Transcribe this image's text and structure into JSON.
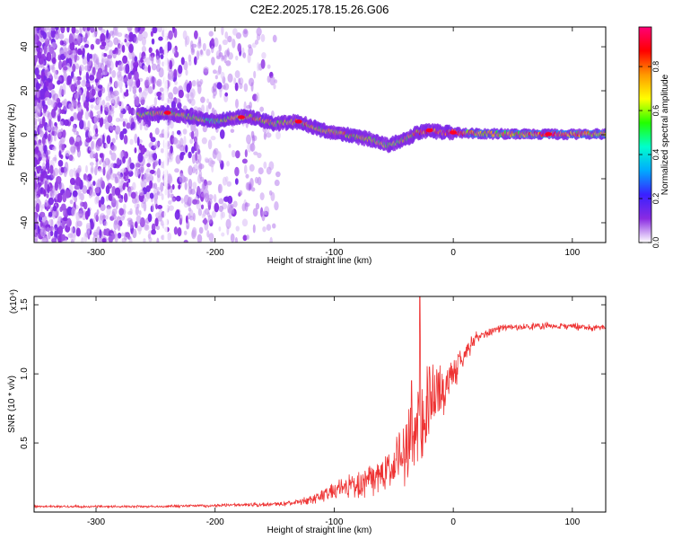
{
  "title": "C2E2.2025.178.15.26.G06",
  "chart_data": [
    {
      "type": "heatmap",
      "xlabel": "Height of straight line (km)",
      "ylabel": "Frequency (Hz)",
      "xlim": [
        -352,
        128
      ],
      "ylim": [
        -49,
        49
      ],
      "xticks": [
        -300,
        -200,
        -100,
        0,
        100
      ],
      "yticks": [
        -40,
        -20,
        0,
        20,
        40
      ],
      "xtick_labels": [
        "-300",
        "-200",
        "-100",
        "0",
        "100"
      ],
      "ytick_labels": [
        "-40",
        "-20",
        "0",
        "20",
        "40"
      ],
      "colorbar": {
        "label": "Normalized spectral amplitude",
        "range": [
          0,
          0.98
        ],
        "ticks": [
          0,
          0.2,
          0.4,
          0.6,
          0.8
        ],
        "tick_labels": [
          "0.0",
          "0.2",
          "0.4",
          "0.6",
          "0.8"
        ],
        "colormap": [
          "#ffffff",
          "#8a2be2",
          "#3a20ff",
          "#00aaff",
          "#00ffcc",
          "#22ff00",
          "#ffff00",
          "#ff9900",
          "#ff0000",
          "#ff0077"
        ]
      },
      "ridge": [
        {
          "x": -265,
          "y": 9,
          "w": 0.45
        },
        {
          "x": -240,
          "y": 10,
          "w": 0.55
        },
        {
          "x": -200,
          "y": 6,
          "w": 0.35
        },
        {
          "x": -180,
          "y": 8,
          "w": 0.5
        },
        {
          "x": -170,
          "y": 8,
          "w": 0.6
        },
        {
          "x": -150,
          "y": 5,
          "w": 0.5
        },
        {
          "x": -130,
          "y": 6,
          "w": 0.6
        },
        {
          "x": -110,
          "y": 2,
          "w": 0.5
        },
        {
          "x": -90,
          "y": 0,
          "w": 0.55
        },
        {
          "x": -70,
          "y": -2,
          "w": 0.5
        },
        {
          "x": -55,
          "y": -5,
          "w": 0.45
        },
        {
          "x": -40,
          "y": -2,
          "w": 0.5
        },
        {
          "x": -30,
          "y": 1,
          "w": 0.6
        },
        {
          "x": -20,
          "y": 2,
          "w": 0.8
        },
        {
          "x": -10,
          "y": 1,
          "w": 0.75
        },
        {
          "x": 0,
          "y": 1,
          "w": 0.8
        },
        {
          "x": 20,
          "y": 0.5,
          "w": 0.5
        },
        {
          "x": 60,
          "y": 0.3,
          "w": 0.55
        },
        {
          "x": 80,
          "y": 0.3,
          "w": 0.85
        },
        {
          "x": 100,
          "y": 0.3,
          "w": 0.6
        },
        {
          "x": 128,
          "y": 0.3,
          "w": 0.5
        }
      ]
    },
    {
      "type": "line",
      "xlabel": "Height of straight line (km)",
      "ylabel": "SNR (10 * v/v)",
      "scale_note": "(x10⁴)",
      "xlim": [
        -352,
        128
      ],
      "ylim": [
        0,
        1.56
      ],
      "xticks": [
        -300,
        -200,
        -100,
        0,
        100
      ],
      "yticks": [
        0.5,
        1.0,
        1.5
      ],
      "xtick_labels": [
        "-300",
        "-200",
        "-100",
        "0",
        "100"
      ],
      "ytick_labels": [
        "0.5",
        "1.0",
        "1.5"
      ],
      "color": "#ee3333",
      "envelope": [
        {
          "x": -352,
          "mean": 0.04,
          "amp": 0.01
        },
        {
          "x": -250,
          "mean": 0.04,
          "amp": 0.01
        },
        {
          "x": -180,
          "mean": 0.05,
          "amp": 0.015
        },
        {
          "x": -140,
          "mean": 0.06,
          "amp": 0.02
        },
        {
          "x": -120,
          "mean": 0.09,
          "amp": 0.04
        },
        {
          "x": -100,
          "mean": 0.15,
          "amp": 0.08
        },
        {
          "x": -80,
          "mean": 0.2,
          "amp": 0.12
        },
        {
          "x": -60,
          "mean": 0.25,
          "amp": 0.15
        },
        {
          "x": -40,
          "mean": 0.42,
          "amp": 0.3
        },
        {
          "x": -30,
          "mean": 0.65,
          "amp": 0.5
        },
        {
          "x": -20,
          "mean": 0.8,
          "amp": 0.35
        },
        {
          "x": -10,
          "mean": 0.85,
          "amp": 0.25
        },
        {
          "x": 0,
          "mean": 1.0,
          "amp": 0.15
        },
        {
          "x": 10,
          "mean": 1.15,
          "amp": 0.1
        },
        {
          "x": 20,
          "mean": 1.27,
          "amp": 0.05
        },
        {
          "x": 40,
          "mean": 1.33,
          "amp": 0.03
        },
        {
          "x": 80,
          "mean": 1.35,
          "amp": 0.03
        },
        {
          "x": 128,
          "mean": 1.33,
          "amp": 0.03
        }
      ],
      "peaks": [
        {
          "x": -28,
          "y": 1.56
        },
        {
          "x": -20,
          "y": 1.05
        },
        {
          "x": -35,
          "y": 0.95
        }
      ]
    }
  ]
}
